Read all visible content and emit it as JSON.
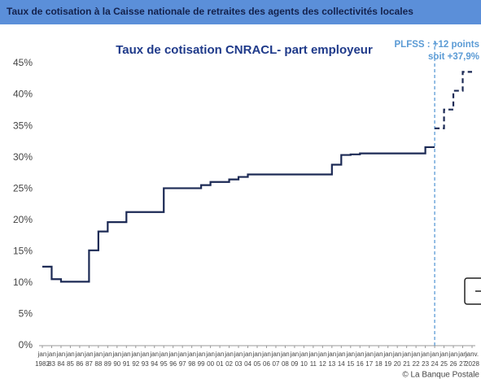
{
  "header": {
    "title": "Taux de cotisation à la Caisse nationale de retraites des agents des collectivités locales"
  },
  "footer": {
    "credit": "© La Banque Postale"
  },
  "chart_data": {
    "type": "step-line",
    "title": "Taux de cotisation CNRACL- part employeur",
    "annotation": [
      "PLFSS : +12 points",
      "soit +37,9%"
    ],
    "x_top_labels": [
      "jan",
      "jan",
      "jan",
      "jan",
      "jan",
      "jan",
      "jan",
      "jan",
      "jan",
      "jan",
      "jan",
      "jan",
      "jan",
      "jan",
      "jan",
      "jan",
      "jan",
      "jan",
      "jan",
      "jan",
      "jan",
      "jan",
      "jan",
      "jan",
      "jan",
      "jan",
      "jan",
      "jan",
      "jan",
      "jan",
      "jan",
      "jan",
      "jan",
      "jan",
      "jan",
      "jan",
      "jan",
      "jan",
      "jan",
      "jan",
      "jan",
      "jan",
      "jan",
      "jan",
      "jan",
      "jan",
      "janv."
    ],
    "categories": [
      "1982",
      "83",
      "84",
      "85",
      "86",
      "87",
      "88",
      "89",
      "90",
      "91",
      "92",
      "93",
      "94",
      "95",
      "96",
      "97",
      "98",
      "99",
      "00",
      "01",
      "02",
      "03",
      "04",
      "05",
      "06",
      "07",
      "08",
      "09",
      "10",
      "11",
      "12",
      "13",
      "14",
      "15",
      "16",
      "17",
      "18",
      "19",
      "20",
      "21",
      "22",
      "23",
      "24",
      "25",
      "26",
      "27",
      "2028"
    ],
    "series": [
      {
        "color": "#1c2a55",
        "dashed": false,
        "values": [
          12.6,
          10.6,
          10.2,
          10.2,
          10.2,
          15.2,
          18.2,
          19.7,
          19.7,
          21.3,
          21.3,
          21.3,
          21.3,
          25.1,
          25.1,
          25.1,
          25.1,
          25.6,
          26.1,
          26.1,
          26.5,
          26.9,
          27.3,
          27.3,
          27.3,
          27.3,
          27.3,
          27.3,
          27.3,
          27.3,
          27.3,
          28.85,
          30.4,
          30.5,
          30.65,
          30.65,
          30.65,
          30.65,
          30.65,
          30.65,
          30.65,
          31.65,
          31.65,
          null,
          null,
          null,
          null
        ]
      },
      {
        "color": "#1c2a55",
        "dashed": true,
        "values": [
          null,
          null,
          null,
          null,
          null,
          null,
          null,
          null,
          null,
          null,
          null,
          null,
          null,
          null,
          null,
          null,
          null,
          null,
          null,
          null,
          null,
          null,
          null,
          null,
          null,
          null,
          null,
          null,
          null,
          null,
          null,
          null,
          null,
          null,
          null,
          null,
          null,
          null,
          null,
          null,
          null,
          null,
          34.65,
          37.65,
          40.65,
          43.65,
          43.65
        ]
      }
    ],
    "marker_category_index": 42,
    "ylim": [
      0,
      45
    ],
    "yticks": [
      {
        "value": 0,
        "label": "0%"
      },
      {
        "value": 5,
        "label": "5%"
      },
      {
        "value": 10,
        "label": "10%"
      },
      {
        "value": 15,
        "label": "15%"
      },
      {
        "value": 20,
        "label": "20%"
      },
      {
        "value": 25,
        "label": "25%"
      },
      {
        "value": 30,
        "label": "30%"
      },
      {
        "value": 35,
        "label": "35%"
      },
      {
        "value": 40,
        "label": "40%"
      },
      {
        "value": 45,
        "label": "45%"
      }
    ],
    "grid": false
  }
}
